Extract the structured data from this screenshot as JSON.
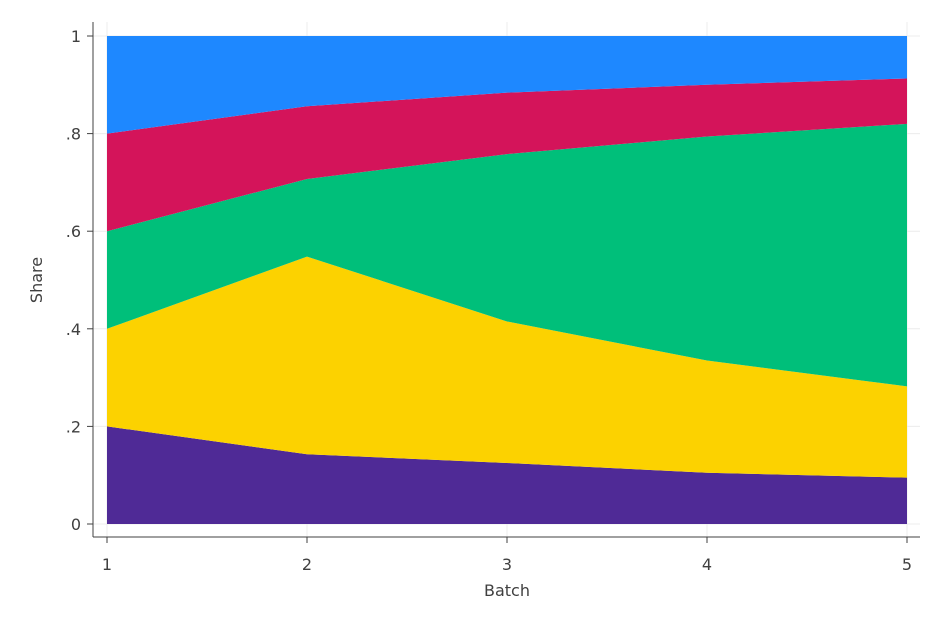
{
  "chart_data": {
    "type": "area",
    "stacked": true,
    "title": "",
    "xlabel": "Batch",
    "ylabel": "Share",
    "x": [
      1,
      2,
      3,
      4,
      5
    ],
    "x_tick_labels": [
      "1",
      "2",
      "3",
      "4",
      "5"
    ],
    "ylim": [
      0,
      1
    ],
    "y_ticks": [
      0,
      0.2,
      0.4,
      0.6,
      0.8,
      1
    ],
    "y_tick_labels": [
      "0",
      ".2",
      ".4",
      ".6",
      ".8",
      "1"
    ],
    "grid": true,
    "legend": "none",
    "series": [
      {
        "color": "#4F2A96",
        "values": [
          0.2,
          0.143,
          0.125,
          0.105,
          0.095
        ]
      },
      {
        "color": "#FCD200",
        "values": [
          0.2,
          0.405,
          0.29,
          0.23,
          0.187
        ]
      },
      {
        "color": "#00BF7A",
        "values": [
          0.2,
          0.159,
          0.343,
          0.459,
          0.538
        ]
      },
      {
        "color": "#D4145A",
        "values": [
          0.2,
          0.149,
          0.126,
          0.106,
          0.093
        ]
      },
      {
        "color": "#1E88FF",
        "values": [
          0.2,
          0.144,
          0.116,
          0.1,
          0.087
        ]
      }
    ]
  }
}
